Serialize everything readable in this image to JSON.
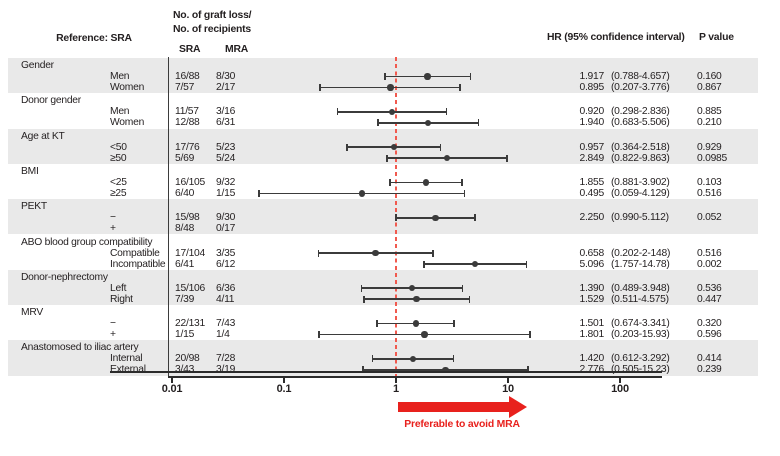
{
  "colors": {
    "band_gray": "#e9e9e9",
    "text": "#231f20",
    "marker": "#3b3b3b",
    "accent_red": "#e8211d",
    "reference_line_red": "#f15a4f"
  },
  "header": {
    "reference_label": "Reference: SRA",
    "events_line1": "No. of graft loss/",
    "events_line2": "No. of recipients",
    "col_sra": "SRA",
    "col_mra": "MRA",
    "col_hr": "HR (95% confidence interval)",
    "col_p": "P value"
  },
  "chart_data": {
    "type": "forest",
    "x_axis": {
      "scale": "log",
      "min": 0.01,
      "max": 100,
      "ticks": [
        0.01,
        0.1,
        1,
        10,
        100
      ],
      "tick_labels": [
        "0.01",
        "0.1",
        "1",
        "10",
        "100"
      ],
      "reference_line": 1
    },
    "annotation": {
      "arrow_from": 1,
      "arrow_to": 14.5,
      "label": "Preferable to avoid MRA"
    },
    "groups": [
      {
        "label": "Gender",
        "rows": [
          {
            "label": "Men",
            "sra": "16/88",
            "mra": "8/30",
            "hr": 1.917,
            "lo": 0.788,
            "hi": 4.657,
            "hr_text": "1.917",
            "ci_text": "(0.788-4.657)",
            "p": "0.160"
          },
          {
            "label": "Women",
            "sra": "7/57",
            "mra": "2/17",
            "hr": 0.895,
            "lo": 0.207,
            "hi": 3.776,
            "hr_text": "0.895",
            "ci_text": "(0.207-3.776)",
            "p": "0.867"
          }
        ]
      },
      {
        "label": "Donor gender",
        "rows": [
          {
            "label": "Men",
            "sra": "11/57",
            "mra": "3/16",
            "hr": 0.92,
            "lo": 0.298,
            "hi": 2.836,
            "hr_text": "0.920",
            "ci_text": "(0.298-2.836)",
            "p": "0.885"
          },
          {
            "label": "Women",
            "sra": "12/88",
            "mra": "6/31",
            "hr": 1.94,
            "lo": 0.683,
            "hi": 5.506,
            "hr_text": "1.940",
            "ci_text": "(0.683-5.506)",
            "p": "0.210"
          }
        ]
      },
      {
        "label": "Age at KT",
        "rows": [
          {
            "label": "<50",
            "sra": "17/76",
            "mra": "5/23",
            "hr": 0.957,
            "lo": 0.364,
            "hi": 2.518,
            "hr_text": "0.957",
            "ci_text": "(0.364-2.518)",
            "p": "0.929"
          },
          {
            "label": "≥50",
            "sra": "5/69",
            "mra": "5/24",
            "hr": 2.849,
            "lo": 0.822,
            "hi": 9.863,
            "hr_text": "2.849",
            "ci_text": "(0.822-9.863)",
            "p": "0.0985"
          }
        ]
      },
      {
        "label": "BMI",
        "rows": [
          {
            "label": "<25",
            "sra": "16/105",
            "mra": "9/32",
            "hr": 1.855,
            "lo": 0.881,
            "hi": 3.902,
            "hr_text": "1.855",
            "ci_text": "(0.881-3.902)",
            "p": "0.103"
          },
          {
            "label": "≥25",
            "sra": "6/40",
            "mra": "1/15",
            "hr": 0.495,
            "lo": 0.059,
            "hi": 4.129,
            "hr_text": "0.495",
            "ci_text": "(0.059-4.129)",
            "p": "0.516"
          }
        ]
      },
      {
        "label": "PEKT",
        "rows": [
          {
            "label": "−",
            "sra": "15/98",
            "mra": "9/30",
            "hr": 2.25,
            "lo": 0.99,
            "hi": 5.112,
            "hr_text": "2.250",
            "ci_text": "(0.990-5.112)",
            "p": "0.052"
          },
          {
            "label": "+",
            "sra": "8/48",
            "mra": "0/17",
            "hr": null,
            "lo": null,
            "hi": null,
            "hr_text": "",
            "ci_text": "",
            "p": ""
          }
        ]
      },
      {
        "label": "ABO blood group compatibility",
        "rows": [
          {
            "label": "Compatible",
            "sra": "17/104",
            "mra": "3/35",
            "hr": 0.658,
            "lo": 0.202,
            "hi": 2.148,
            "hr_text": "0.658",
            "ci_text": "(0.202-2-148)",
            "p": "0.516"
          },
          {
            "label": "Incompatible",
            "sra": "6/41",
            "mra": "6/12",
            "hr": 5.096,
            "lo": 1.757,
            "hi": 14.78,
            "hr_text": "5.096",
            "ci_text": "(1.757-14.78)",
            "p": "0.002"
          }
        ]
      },
      {
        "label": "Donor-nephrectomy",
        "rows": [
          {
            "label": "Left",
            "sra": "15/106",
            "mra": "6/36",
            "hr": 1.39,
            "lo": 0.489,
            "hi": 3.948,
            "hr_text": "1.390",
            "ci_text": "(0.489-3.948)",
            "p": "0.536"
          },
          {
            "label": "Right",
            "sra": "7/39",
            "mra": "4/11",
            "hr": 1.529,
            "lo": 0.511,
            "hi": 4.575,
            "hr_text": "1.529",
            "ci_text": "(0.511-4.575)",
            "p": "0.447"
          }
        ]
      },
      {
        "label": "MRV",
        "rows": [
          {
            "label": "−",
            "sra": "22/131",
            "mra": "7/43",
            "hr": 1.501,
            "lo": 0.674,
            "hi": 3.341,
            "hr_text": "1.501",
            "ci_text": "(0.674-3.341)",
            "p": "0.320"
          },
          {
            "label": "+",
            "sra": "1/15",
            "mra": "1/4",
            "hr": 1.801,
            "lo": 0.203,
            "hi": 15.93,
            "hr_text": "1.801",
            "ci_text": "(0.203-15.93)",
            "p": "0.596"
          }
        ]
      },
      {
        "label": "Anastomosed to iliac artery",
        "rows": [
          {
            "label": "Internal",
            "sra": "20/98",
            "mra": "7/28",
            "hr": 1.42,
            "lo": 0.612,
            "hi": 3.292,
            "hr_text": "1.420",
            "ci_text": "(0.612-3.292)",
            "p": "0.414"
          },
          {
            "label": "External",
            "sra": "3/43",
            "mra": "3/19",
            "hr": 2.776,
            "lo": 0.505,
            "hi": 15.23,
            "hr_text": "2.776",
            "ci_text": "(0.505-15.23)",
            "p": "0.239"
          }
        ]
      }
    ]
  }
}
